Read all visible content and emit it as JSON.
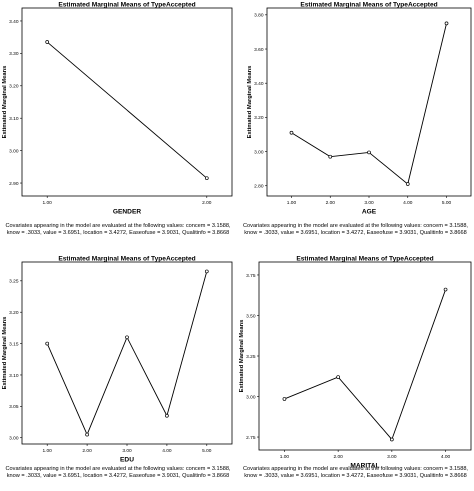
{
  "chart_data": [
    {
      "type": "line",
      "title": "Estimated Marginal Means of TypeAccepted",
      "xlabel": "GENDER",
      "ylabel": "Estimated Marginal Means",
      "categories": [
        "1.00",
        "2.00"
      ],
      "values": [
        3.335,
        2.915
      ],
      "ylim": [
        2.86,
        3.44
      ],
      "yticks": [
        2.9,
        3.0,
        3.1,
        3.2,
        3.3,
        3.4
      ],
      "ytick_labels": [
        "2.90",
        "3.00",
        "3.10",
        "3.20",
        "3.30",
        "3.40"
      ],
      "grid": false
    },
    {
      "type": "line",
      "title": "Estimated Marginal Means of TypeAccepted",
      "xlabel": "AGE",
      "ylabel": "Estimated Marginal Means",
      "categories": [
        "1.00",
        "2.00",
        "3.00",
        "4.00",
        "5.00"
      ],
      "values": [
        3.11,
        2.97,
        2.995,
        2.81,
        3.75
      ],
      "ylim": [
        2.74,
        3.84
      ],
      "yticks": [
        2.8,
        3.0,
        3.2,
        3.4,
        3.6,
        3.8
      ],
      "ytick_labels": [
        "2.80",
        "3.00",
        "3.20",
        "3.40",
        "3.60",
        "3.80"
      ],
      "grid": false
    },
    {
      "type": "line",
      "title": "Estimated Marginal Means of TypeAccepted",
      "xlabel": "EDU",
      "ylabel": "Estimated Marginal Means",
      "categories": [
        "1.00",
        "2.00",
        "3.00",
        "4.00",
        "5.00"
      ],
      "values": [
        3.15,
        3.005,
        3.16,
        3.035,
        3.265
      ],
      "ylim": [
        2.99,
        3.28
      ],
      "yticks": [
        3.0,
        3.05,
        3.1,
        3.15,
        3.2,
        3.25
      ],
      "ytick_labels": [
        "3.00",
        "3.05",
        "3.10",
        "3.15",
        "3.20",
        "3.25"
      ],
      "grid": false
    },
    {
      "type": "line",
      "title": "Estimated Marginal Means of TypeAccepted",
      "xlabel": "MARITAL",
      "ylabel": "Estimated Marginal Means",
      "categories": [
        "1.00",
        "2.00",
        "3.00",
        "4.00"
      ],
      "values": [
        2.985,
        3.12,
        2.735,
        3.66
      ],
      "ylim": [
        2.67,
        3.83
      ],
      "yticks": [
        2.75,
        3.0,
        3.25,
        3.5,
        3.75
      ],
      "ytick_labels": [
        "2.75",
        "3.00",
        "3.25",
        "3.50",
        "3.75"
      ],
      "grid": false
    }
  ],
  "captions": [
    "Covariates appearing in the model are evaluated at the following values: concem = 3.1588, know = .3033, value = 3.6951, location = 3.4272, Easeofuse = 3.9031, Qualitinfo = 3.8668",
    "Covariates appearing in the model are evaluated at the following values: concem = 3.1588, know = .3033, value = 3.6951, location = 3.4272, Easeofuse = 3.9031, Qualitinfo = 3.8668",
    "Covariates appearing in the model are evaluated at the following values: concem = 3.1588, know = .3033, value = 3.6951, location = 3.4272, Easeofuse = 3.9031, Qualitinfo = 3.8668",
    "Covariates appearing in the model are evaluated at the following values: concem = 3.1588, know = .3033, value = 3.6951, location = 3.4272, Easeofuse = 3.9031, Qualitinfo = 3.8668"
  ],
  "colors": {
    "line": "#000000",
    "plot_bg": "#ffffff",
    "frame": "#000000"
  }
}
